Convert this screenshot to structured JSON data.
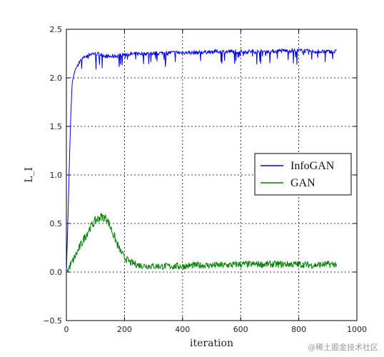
{
  "chart_data": {
    "type": "line",
    "title": "",
    "xlabel": "iteration",
    "ylabel": "L_I",
    "xlim": [
      0,
      1000
    ],
    "ylim": [
      -0.5,
      2.5
    ],
    "xticks": [
      0,
      200,
      400,
      600,
      800,
      1000
    ],
    "yticks": [
      -0.5,
      0.0,
      0.5,
      1.0,
      1.5,
      2.0,
      2.5
    ],
    "xtick_labels": [
      "0",
      "200",
      "400",
      "600",
      "800",
      "1000"
    ],
    "ytick_labels": [
      "−0.5",
      "0.0",
      "0.5",
      "1.0",
      "1.5",
      "2.0",
      "2.5"
    ],
    "grid": true,
    "legend_position": "center-right",
    "series": [
      {
        "name": "InfoGAN",
        "color": "#0000ff",
        "x": [
          0,
          5,
          10,
          15,
          20,
          25,
          30,
          40,
          50,
          60,
          70,
          80,
          90,
          100,
          120,
          140,
          160,
          180,
          200,
          250,
          300,
          350,
          400,
          450,
          500,
          550,
          600,
          650,
          700,
          750,
          800,
          850,
          900,
          930
        ],
        "y": [
          0.0,
          0.5,
          1.1,
          1.6,
          1.95,
          2.02,
          2.08,
          2.14,
          2.18,
          2.21,
          2.23,
          2.24,
          2.25,
          2.25,
          2.24,
          2.22,
          2.22,
          2.23,
          2.24,
          2.25,
          2.25,
          2.26,
          2.26,
          2.26,
          2.27,
          2.27,
          2.27,
          2.27,
          2.27,
          2.28,
          2.28,
          2.27,
          2.27,
          2.27
        ]
      },
      {
        "name": "GAN",
        "color": "#008000",
        "x": [
          0,
          20,
          40,
          60,
          80,
          100,
          120,
          140,
          160,
          180,
          200,
          220,
          250,
          300,
          350,
          400,
          450,
          500,
          550,
          600,
          650,
          700,
          750,
          800,
          850,
          900,
          930
        ],
        "y": [
          0.0,
          0.1,
          0.22,
          0.34,
          0.45,
          0.53,
          0.57,
          0.55,
          0.4,
          0.25,
          0.15,
          0.1,
          0.07,
          0.06,
          0.06,
          0.06,
          0.07,
          0.07,
          0.07,
          0.08,
          0.08,
          0.08,
          0.08,
          0.08,
          0.07,
          0.08,
          0.08
        ]
      }
    ]
  },
  "watermark": "@稀土掘金技术社区"
}
